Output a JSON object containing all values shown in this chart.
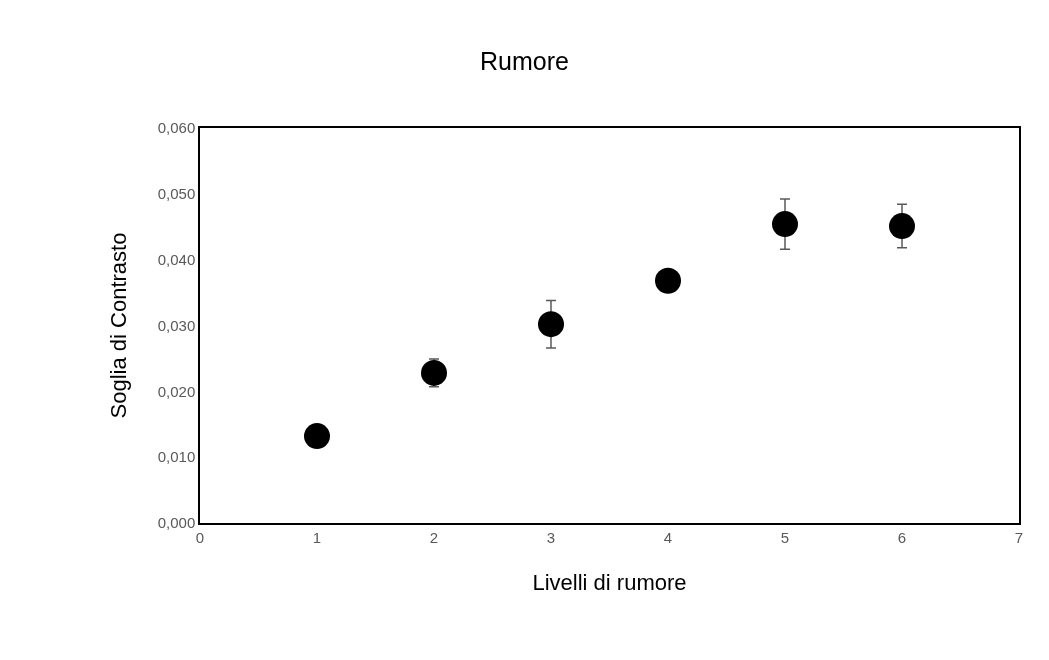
{
  "chart_data": {
    "type": "scatter",
    "title": "Rumore",
    "xlabel": "Livelli di rumore",
    "ylabel": "Soglia di Contrasto",
    "x": [
      1,
      2,
      3,
      4,
      5,
      6
    ],
    "values": [
      0.0132,
      0.0228,
      0.0302,
      0.0368,
      0.0454,
      0.0451
    ],
    "errors": [
      0.0015,
      0.0021,
      0.0036,
      0.0015,
      0.0038,
      0.0033
    ],
    "color": "#000000",
    "marker": "circle",
    "xlim": [
      0,
      7
    ],
    "xticks": [
      0,
      1,
      2,
      3,
      4,
      5,
      6,
      7
    ],
    "ylim": [
      0,
      0.06
    ],
    "yticks": [
      {
        "value": 0,
        "label": "0,000"
      },
      {
        "value": 0.01,
        "label": "0,010"
      },
      {
        "value": 0.02,
        "label": "0,020"
      },
      {
        "value": 0.03,
        "label": "0,030"
      },
      {
        "value": 0.04,
        "label": "0,040"
      },
      {
        "value": 0.05,
        "label": "0,050"
      },
      {
        "value": 0.06,
        "label": "0,060"
      }
    ],
    "tick_labels": "xy"
  }
}
